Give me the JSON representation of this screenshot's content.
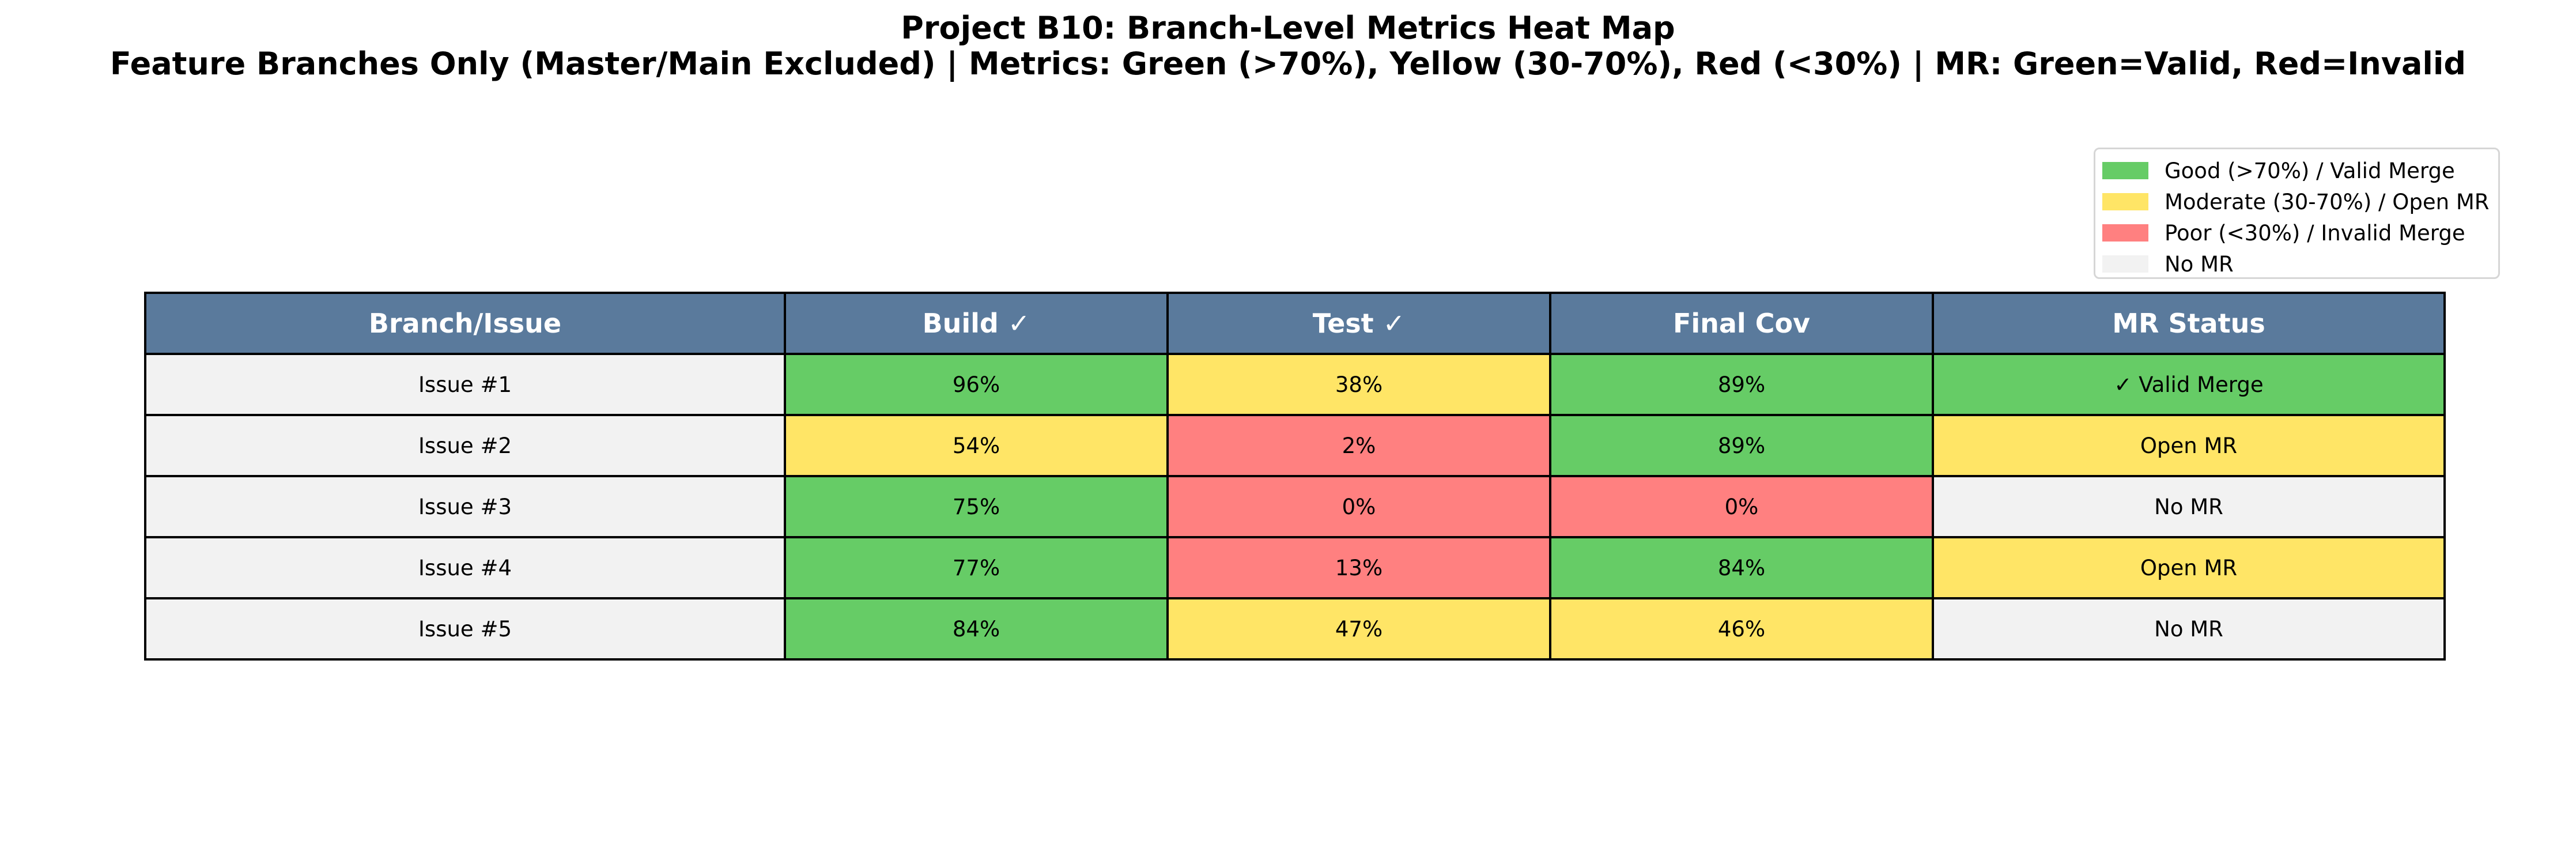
{
  "title": "Project B10: Branch-Level Metrics Heat Map",
  "subtitle": "Feature Branches Only (Master/Main Excluded) | Metrics: Green (>70%), Yellow (30-70%), Red (<30%) | MR: Green=Valid, Red=Invalid",
  "colors": {
    "header": "#5a7a9c",
    "good": "#66cc66",
    "moderate": "#ffe566",
    "poor": "#ff8080",
    "none": "#f2f2f2"
  },
  "legend": [
    {
      "label": "Good (>70%) / Valid Merge",
      "status": "good"
    },
    {
      "label": "Moderate (30-70%) / Open MR",
      "status": "moderate"
    },
    {
      "label": "Poor (<30%) / Invalid Merge",
      "status": "poor"
    },
    {
      "label": "No MR",
      "status": "none"
    }
  ],
  "chart_data": {
    "type": "table",
    "title": "Project B10: Branch-Level Metrics Heat Map",
    "subtitle": "Feature Branches Only (Master/Main Excluded) | Metrics: Green (>70%), Yellow (30-70%), Red (<30%) | MR: Green=Valid, Red=Invalid",
    "columns": [
      "Branch/Issue",
      "Build ✓",
      "Test ✓",
      "Final Cov",
      "MR Status"
    ],
    "rows": [
      {
        "branch": "Issue #1",
        "build": 96,
        "test": 38,
        "final_cov": 89,
        "mr_status": "✓ Valid Merge",
        "mr_class": "good"
      },
      {
        "branch": "Issue #2",
        "build": 54,
        "test": 2,
        "final_cov": 89,
        "mr_status": "Open MR",
        "mr_class": "moderate"
      },
      {
        "branch": "Issue #3",
        "build": 75,
        "test": 0,
        "final_cov": 0,
        "mr_status": "No MR",
        "mr_class": "none"
      },
      {
        "branch": "Issue #4",
        "build": 77,
        "test": 13,
        "final_cov": 84,
        "mr_status": "Open MR",
        "mr_class": "moderate"
      },
      {
        "branch": "Issue #5",
        "build": 84,
        "test": 47,
        "final_cov": 46,
        "mr_status": "No MR",
        "mr_class": "none"
      }
    ],
    "thresholds": {
      "good_above": 70,
      "poor_below": 30
    }
  }
}
